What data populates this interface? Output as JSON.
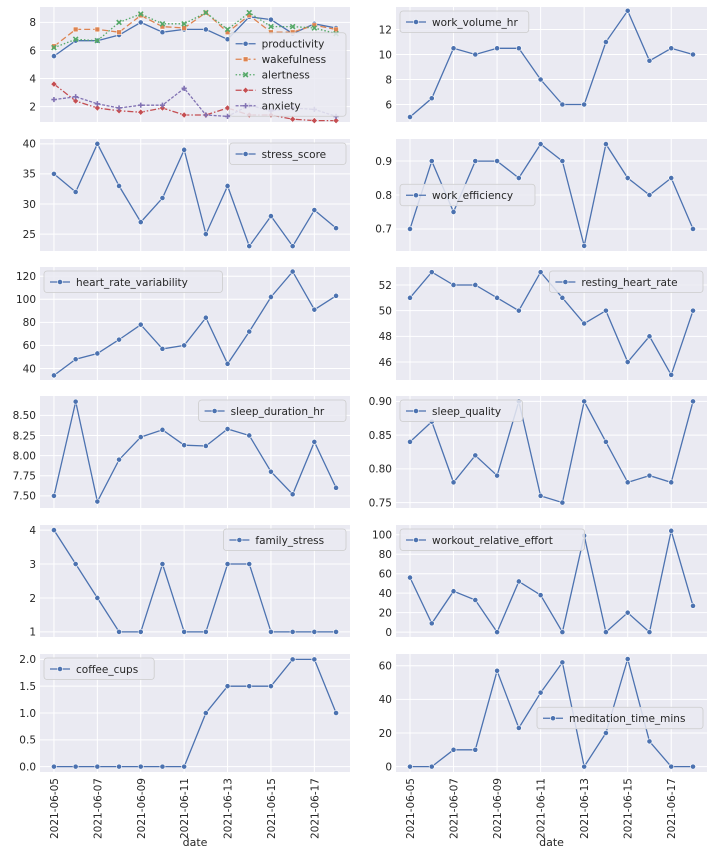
{
  "figure": {
    "dates": [
      "2021-06-05",
      "2021-06-06",
      "2021-06-07",
      "2021-06-08",
      "2021-06-09",
      "2021-06-10",
      "2021-06-11",
      "2021-06-12",
      "2021-06-13",
      "2021-06-14",
      "2021-06-15",
      "2021-06-16",
      "2021-06-17",
      "2021-06-18"
    ],
    "x_tick_labels": [
      "2021-06-05",
      "2021-06-07",
      "2021-06-09",
      "2021-06-11",
      "2021-06-13",
      "2021-06-15",
      "2021-06-17"
    ],
    "xlabel": "date",
    "colors": {
      "background": "#eaeaf2",
      "grid": "#ffffff",
      "blue": "#4c72b0",
      "orange": "#dd8452",
      "green": "#55a868",
      "red": "#c44e52",
      "purple": "#8172b3"
    }
  },
  "chart_data": [
    {
      "type": "line",
      "ylim": [
        0.9,
        9.1
      ],
      "yticks": [
        2,
        4,
        6,
        8
      ],
      "legend_pos": "center-right",
      "grid": true,
      "series": [
        {
          "name": "productivity",
          "color": "#4c72b0",
          "marker": "circle",
          "dash": "",
          "values": [
            5.6,
            6.7,
            6.7,
            7.1,
            8.0,
            7.3,
            7.5,
            7.5,
            6.8,
            8.4,
            8.2,
            7.2,
            7.9,
            7.6
          ]
        },
        {
          "name": "wakefulness",
          "color": "#dd8452",
          "marker": "square",
          "dash": "6,3",
          "values": [
            6.3,
            7.5,
            7.5,
            7.3,
            8.5,
            7.7,
            7.6,
            8.7,
            7.3,
            8.5,
            7.3,
            7.3,
            7.8,
            7.5
          ]
        },
        {
          "name": "alertness",
          "color": "#55a868",
          "marker": "x",
          "dash": "1.5,2",
          "values": [
            6.2,
            6.8,
            6.7,
            8.0,
            8.6,
            7.9,
            7.9,
            8.7,
            7.5,
            8.7,
            7.7,
            7.7,
            7.6,
            7.2
          ]
        },
        {
          "name": "stress",
          "color": "#c44e52",
          "marker": "diamond",
          "dash": "6,2,1.5,2",
          "values": [
            3.6,
            2.4,
            1.9,
            1.7,
            1.6,
            1.9,
            1.4,
            1.4,
            1.9,
            1.4,
            1.4,
            1.1,
            1.0,
            1.0
          ]
        },
        {
          "name": "anxiety",
          "color": "#8172b3",
          "marker": "plus",
          "dash": "3,1.5",
          "values": [
            2.5,
            2.7,
            2.2,
            1.9,
            2.1,
            2.1,
            3.3,
            1.4,
            1.3,
            2.1,
            1.7,
            1.9,
            1.8,
            1.3
          ]
        }
      ]
    },
    {
      "type": "line",
      "ylim": [
        4.6,
        13.8
      ],
      "yticks": [
        6,
        8,
        10,
        12
      ],
      "legend_pos": "top-left",
      "grid": true,
      "series": [
        {
          "name": "work_volume_hr",
          "color": "#4c72b0",
          "marker": "circle",
          "dash": "",
          "values": [
            5,
            6.5,
            10.5,
            10,
            10.5,
            10.5,
            8,
            6,
            6,
            11,
            13.5,
            9.5,
            10.5,
            10
          ]
        }
      ]
    },
    {
      "type": "line",
      "ylim": [
        22.2,
        40.8
      ],
      "yticks": [
        25,
        30,
        35,
        40
      ],
      "legend_pos": "top-right",
      "grid": true,
      "series": [
        {
          "name": "stress_score",
          "color": "#4c72b0",
          "marker": "circle",
          "dash": "",
          "values": [
            35,
            32,
            40,
            33,
            27,
            31,
            39,
            25,
            33,
            23,
            28,
            23,
            29,
            26
          ]
        }
      ]
    },
    {
      "type": "line",
      "ylim": [
        0.635,
        0.965
      ],
      "yticks": [
        0.7,
        0.8,
        0.9
      ],
      "tick_decimals": 1,
      "legend_pos": "center-left",
      "grid": true,
      "series": [
        {
          "name": "work_efficiency",
          "color": "#4c72b0",
          "marker": "circle",
          "dash": "",
          "values": [
            0.7,
            0.9,
            0.75,
            0.9,
            0.9,
            0.85,
            0.95,
            0.9,
            0.65,
            0.95,
            0.85,
            0.8,
            0.85,
            0.7
          ]
        }
      ]
    },
    {
      "type": "line",
      "ylim": [
        30,
        128
      ],
      "yticks": [
        40,
        60,
        80,
        100,
        120
      ],
      "legend_pos": "top-left",
      "grid": true,
      "series": [
        {
          "name": "heart_rate_variability",
          "color": "#4c72b0",
          "marker": "circle",
          "dash": "",
          "values": [
            34,
            48,
            53,
            65,
            78,
            57,
            60,
            84,
            44,
            72,
            102,
            124,
            91,
            103
          ]
        }
      ]
    },
    {
      "type": "line",
      "ylim": [
        44.6,
        53.4
      ],
      "yticks": [
        46,
        48,
        50,
        52
      ],
      "legend_pos": "top-right",
      "grid": true,
      "series": [
        {
          "name": "resting_heart_rate",
          "color": "#4c72b0",
          "marker": "circle",
          "dash": "",
          "values": [
            51,
            53,
            52,
            52,
            51,
            50,
            53,
            51,
            49,
            50,
            46,
            48,
            45,
            50
          ]
        }
      ]
    },
    {
      "type": "line",
      "ylim": [
        7.35,
        8.74
      ],
      "yticks": [
        7.5,
        7.75,
        8.0,
        8.25,
        8.5
      ],
      "tick_decimals": 2,
      "legend_pos": "top-right",
      "grid": true,
      "series": [
        {
          "name": "sleep_duration_hr",
          "color": "#4c72b0",
          "marker": "circle",
          "dash": "",
          "values": [
            7.5,
            8.67,
            7.43,
            7.95,
            8.23,
            8.32,
            8.13,
            8.12,
            8.33,
            8.25,
            7.8,
            7.52,
            8.17,
            7.6
          ]
        }
      ]
    },
    {
      "type": "line",
      "ylim": [
        0.742,
        0.908
      ],
      "yticks": [
        0.75,
        0.8,
        0.85,
        0.9
      ],
      "tick_decimals": 2,
      "legend_pos": "top-left",
      "grid": true,
      "series": [
        {
          "name": "sleep_quality",
          "color": "#4c72b0",
          "marker": "circle",
          "dash": "",
          "values": [
            0.84,
            0.87,
            0.78,
            0.82,
            0.79,
            0.9,
            0.76,
            0.75,
            0.9,
            0.84,
            0.78,
            0.79,
            0.78,
            0.9
          ]
        }
      ]
    },
    {
      "type": "line",
      "ylim": [
        0.85,
        4.15
      ],
      "yticks": [
        1,
        2,
        3,
        4
      ],
      "legend_pos": "top-right",
      "grid": true,
      "series": [
        {
          "name": "family_stress",
          "color": "#4c72b0",
          "marker": "circle",
          "dash": "",
          "values": [
            4,
            3,
            2,
            1,
            1,
            3,
            1,
            1,
            3,
            3,
            1,
            1,
            1,
            1
          ]
        }
      ]
    },
    {
      "type": "line",
      "ylim": [
        -5,
        110
      ],
      "yticks": [
        0,
        20,
        40,
        60,
        80,
        100
      ],
      "legend_pos": "top-left",
      "grid": true,
      "series": [
        {
          "name": "workout_relative_effort",
          "color": "#4c72b0",
          "marker": "circle",
          "dash": "",
          "values": [
            56,
            9,
            42,
            33,
            0,
            52,
            38,
            0,
            99,
            0,
            20,
            0,
            104,
            27
          ]
        }
      ]
    },
    {
      "type": "line",
      "ylim": [
        -0.1,
        2.1
      ],
      "yticks": [
        0.0,
        0.5,
        1.0,
        1.5,
        2.0
      ],
      "tick_decimals": 1,
      "legend_pos": "top-left",
      "grid": true,
      "series": [
        {
          "name": "coffee_cups",
          "color": "#4c72b0",
          "marker": "circle",
          "dash": "",
          "values": [
            0,
            0,
            0,
            0,
            0,
            0,
            0,
            1,
            1.5,
            1.5,
            1.5,
            2,
            2,
            1
          ]
        }
      ]
    },
    {
      "type": "line",
      "ylim": [
        -3.2,
        67
      ],
      "yticks": [
        0,
        20,
        40,
        60
      ],
      "legend_pos": "center-right",
      "grid": true,
      "series": [
        {
          "name": "meditation_time_mins",
          "color": "#4c72b0",
          "marker": "circle",
          "dash": "",
          "values": [
            0,
            0,
            10,
            10,
            57,
            23,
            44,
            62,
            0,
            20,
            64,
            15,
            0,
            0
          ]
        }
      ]
    }
  ]
}
